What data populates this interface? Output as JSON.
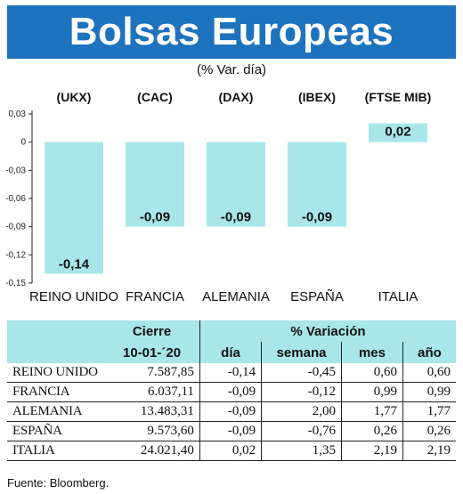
{
  "title": "Bolsas Europeas",
  "subtitle": "(% Var. día)",
  "chart_data": {
    "type": "bar",
    "subtitle": "(% Var. día)",
    "index_labels": [
      "(UKX)",
      "(CAC)",
      "(DAX)",
      "(IBEX)",
      "(FTSE MIB)"
    ],
    "categories": [
      "REINO UNIDO",
      "FRANCIA",
      "ALEMANIA",
      "ESPAÑA",
      "ITALIA"
    ],
    "values": [
      -0.14,
      -0.09,
      -0.09,
      -0.09,
      0.02
    ],
    "value_labels": [
      "-0,14",
      "-0,09",
      "-0,09",
      "-0,09",
      "0,02"
    ],
    "yticks": [
      0.03,
      0,
      -0.03,
      -0.06,
      -0.09,
      -0.12,
      -0.15
    ],
    "ytick_labels": [
      "0,03",
      "0",
      "-0,03",
      "-0,06",
      "-0,09",
      "-0,12",
      "-0,15"
    ],
    "ylim": [
      -0.15,
      0.03
    ],
    "bar_color": "#a8e6ea",
    "grid": false
  },
  "table": {
    "group_headers": [
      "Cierre",
      "% Variación"
    ],
    "columns": [
      "10-01-´20",
      "día",
      "semana",
      "mes",
      "año"
    ],
    "rows": [
      {
        "name": "REINO UNIDO",
        "values": [
          "7.587,85",
          "-0,14",
          "-0,45",
          "0,60",
          "0,60"
        ]
      },
      {
        "name": "FRANCIA",
        "values": [
          "6.037,11",
          "-0,09",
          "-0,12",
          "0,99",
          "0,99"
        ]
      },
      {
        "name": "ALEMANIA",
        "values": [
          "13.483,31",
          "-0,09",
          "2,00",
          "1,77",
          "1,77"
        ]
      },
      {
        "name": "ESPAÑA",
        "values": [
          "9.573,60",
          "-0,09",
          "-0,76",
          "0,26",
          "0,26"
        ]
      },
      {
        "name": "ITALIA",
        "values": [
          "24.021,40",
          "0,02",
          "1,35",
          "2,19",
          "2,19"
        ]
      }
    ]
  },
  "source": "Fuente: Bloomberg.",
  "colors": {
    "banner": "#1e73be",
    "bars": "#a8e6ea",
    "table_header": "#a8e6ea"
  }
}
